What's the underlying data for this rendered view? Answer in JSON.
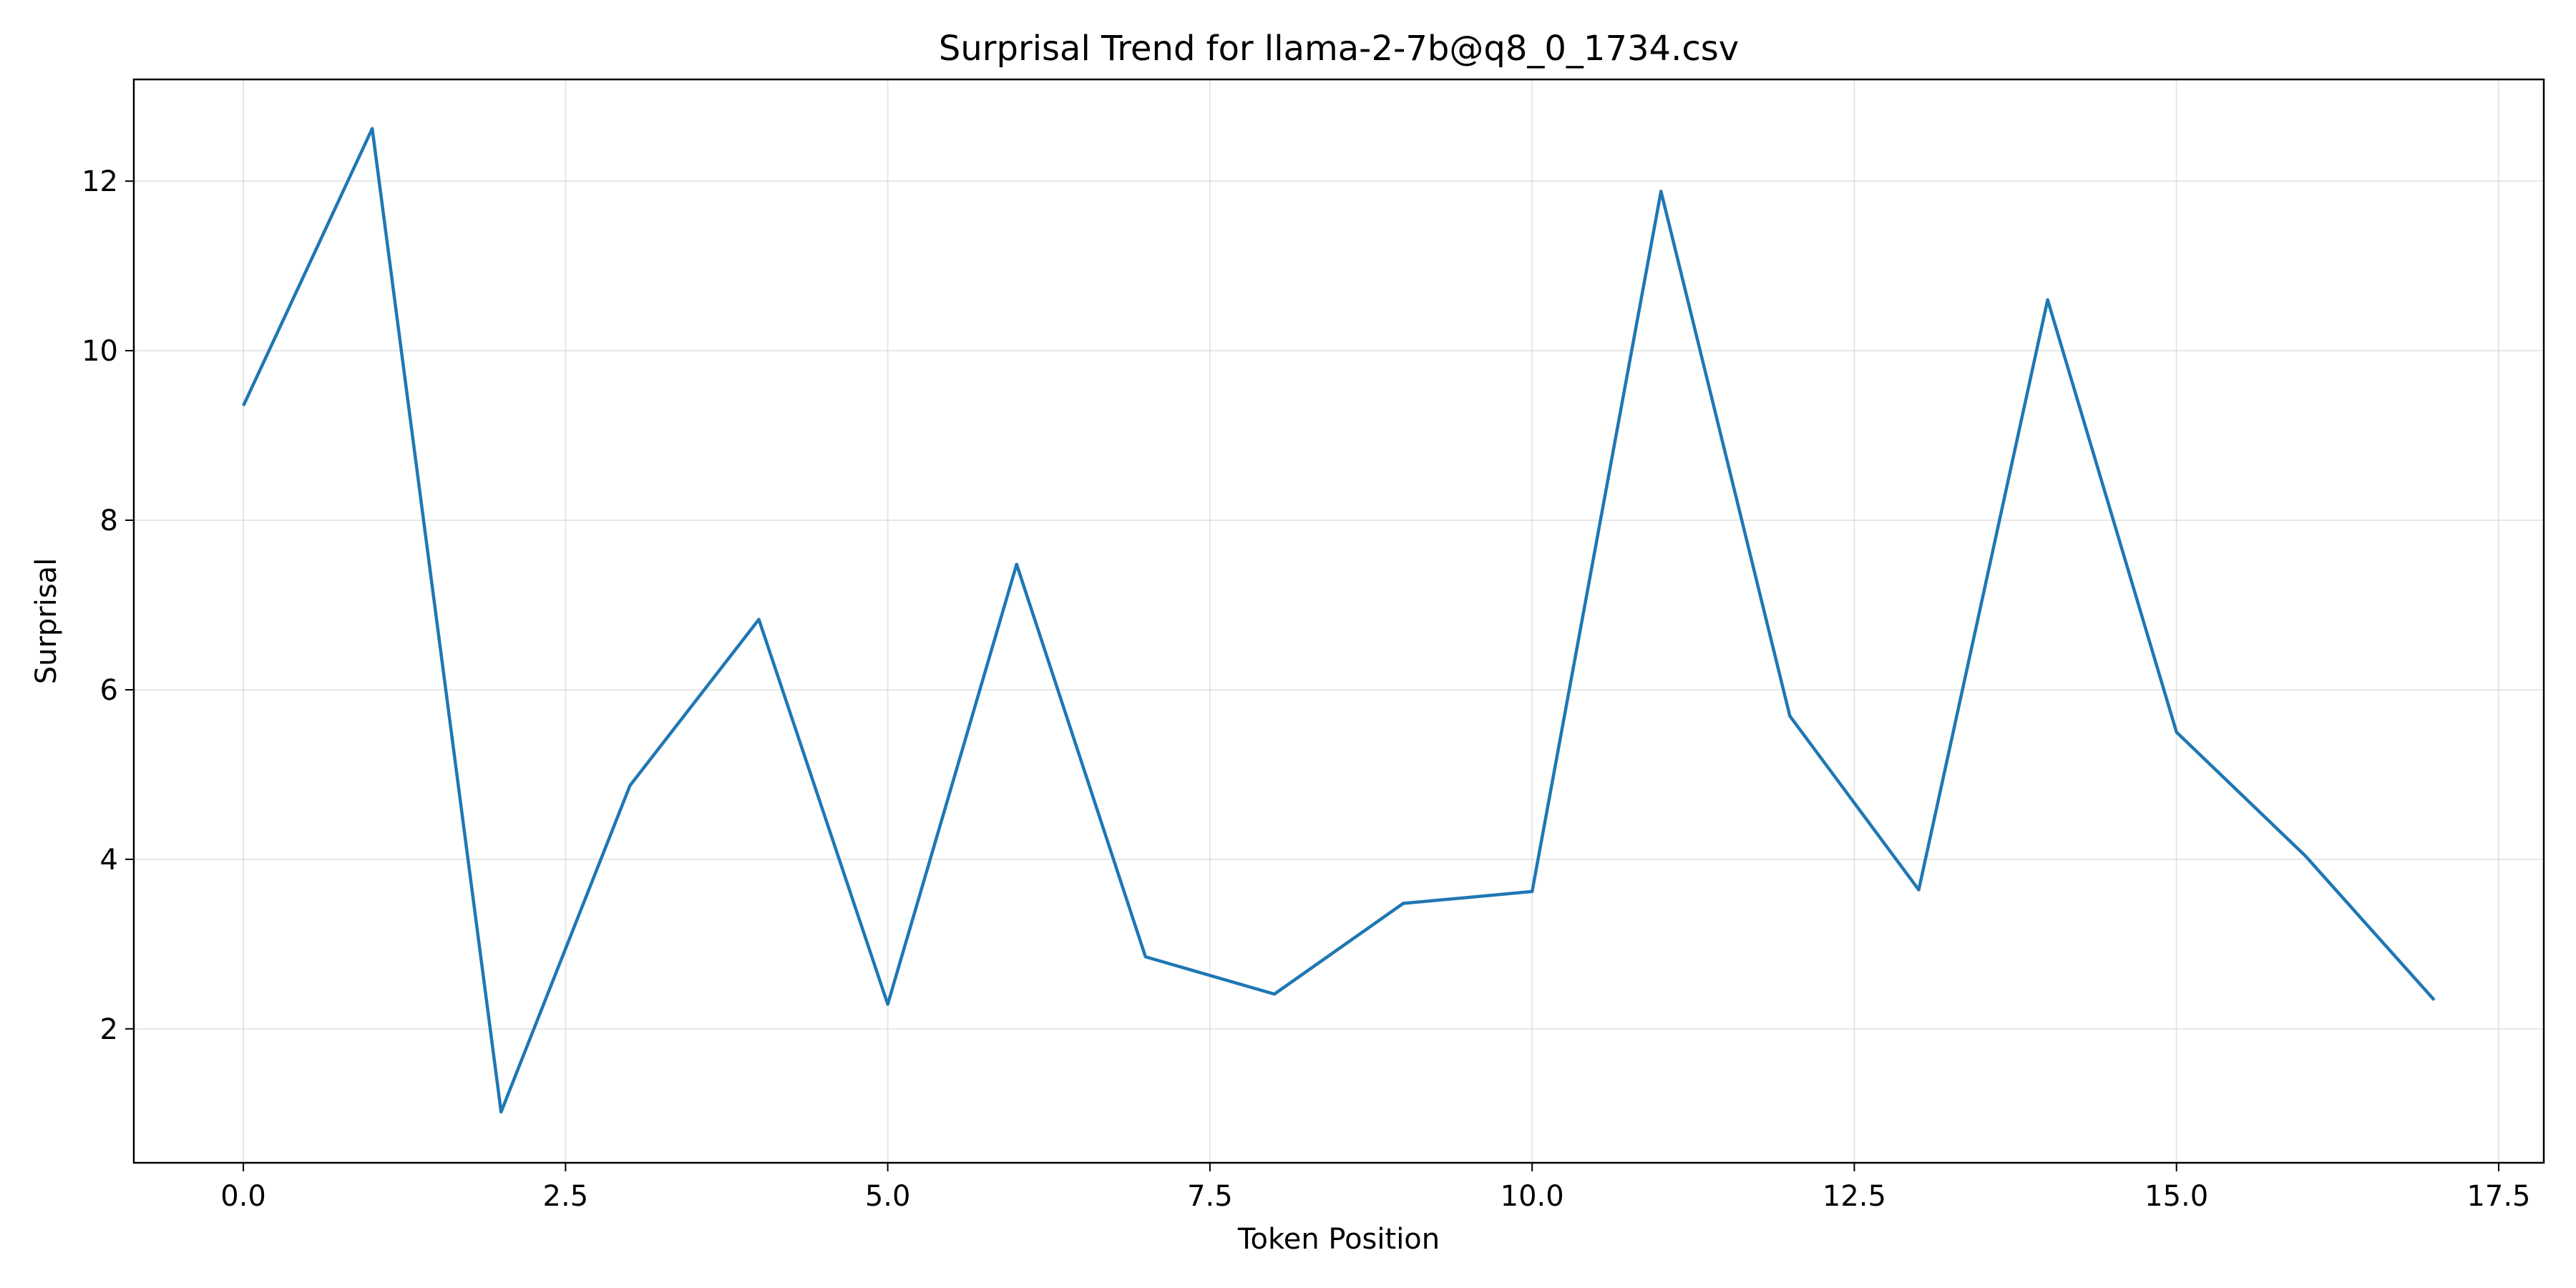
{
  "chart_data": {
    "type": "line",
    "title": "Surprisal Trend for llama-2-7b@q8_0_1734.csv",
    "xlabel": "Token Position",
    "ylabel": "Surprisal",
    "xlim": [
      -0.85,
      17.85
    ],
    "ylim": [
      0.42,
      13.2
    ],
    "grid": true,
    "x_ticks": [
      0.0,
      2.5,
      5.0,
      7.5,
      10.0,
      12.5,
      15.0,
      17.5
    ],
    "x_tick_labels": [
      "0.0",
      "2.5",
      "5.0",
      "7.5",
      "10.0",
      "12.5",
      "15.0",
      "17.5"
    ],
    "y_ticks": [
      2,
      4,
      6,
      8,
      10,
      12
    ],
    "y_tick_labels": [
      "2",
      "4",
      "6",
      "8",
      "10",
      "12"
    ],
    "series": [
      {
        "color": "#1f77b4",
        "x": [
          0,
          1,
          2,
          3,
          4,
          5,
          6,
          7,
          8,
          9,
          10,
          11,
          12,
          13,
          14,
          15,
          16,
          17
        ],
        "values": [
          9.35,
          12.62,
          1.02,
          4.87,
          6.83,
          2.29,
          7.48,
          2.85,
          2.41,
          3.48,
          3.62,
          11.88,
          5.69,
          3.64,
          10.6,
          5.5,
          4.04,
          2.34
        ]
      }
    ]
  }
}
